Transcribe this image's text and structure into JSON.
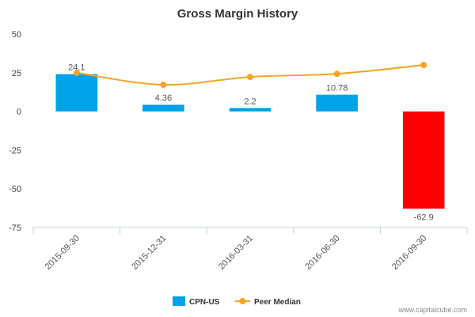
{
  "chart_data": {
    "type": "bar",
    "title": "Gross Margin History",
    "categories": [
      "2015-09-30",
      "2015-12-31",
      "2016-03-31",
      "2016-06-30",
      "2016-09-30"
    ],
    "series": [
      {
        "name": "CPN-US",
        "kind": "bar",
        "values": [
          24.1,
          4.36,
          2.2,
          10.78,
          -62.9
        ],
        "data_labels": [
          "24.1",
          "4.36",
          "2.2",
          "10.78",
          "-62.9"
        ],
        "color": "#00a2e8",
        "negative_color": "#ff0000"
      },
      {
        "name": "Peer Median",
        "kind": "line",
        "values": [
          25,
          17.2,
          22.3,
          24.3,
          30
        ],
        "color": "#f5a623"
      }
    ],
    "y_ticks": [
      "50",
      "25",
      "0",
      "-25",
      "-50",
      "-75"
    ],
    "ylim": [
      -75,
      50
    ],
    "grid": false,
    "legend_position": "bottom-center"
  },
  "credit": "www.capitalcube.com"
}
